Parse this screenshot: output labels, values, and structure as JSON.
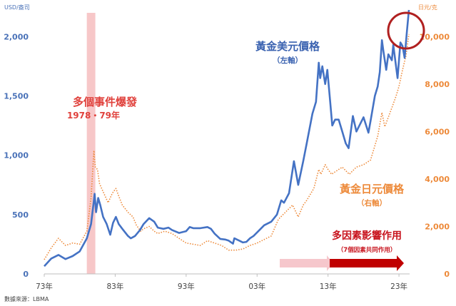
{
  "chart_data": {
    "type": "line",
    "left_axis_unit": "USD/盎司",
    "right_axis_unit": "日元/克",
    "source_note": "數據來源：LBMA",
    "x_ticks": [
      {
        "year": 1973,
        "label": "73年"
      },
      {
        "year": 1983,
        "label": "83年"
      },
      {
        "year": 1993,
        "label": "93年"
      },
      {
        "year": 2003,
        "label": "03年"
      },
      {
        "year": 2013,
        "label": "13年"
      },
      {
        "year": 2023,
        "label": "23年"
      }
    ],
    "xlim": [
      1973,
      2024.5
    ],
    "left_ylim": [
      0,
      2200
    ],
    "right_ylim": [
      0,
      11000
    ],
    "left_ticks": [
      {
        "v": 0,
        "label": "0"
      },
      {
        "v": 500,
        "label": "500"
      },
      {
        "v": 1000,
        "label": "1,000"
      },
      {
        "v": 1500,
        "label": "1,500"
      },
      {
        "v": 2000,
        "label": "2,000"
      }
    ],
    "right_ticks": [
      {
        "v": 0,
        "label": "0"
      },
      {
        "v": 2000,
        "label": "2,000"
      },
      {
        "v": 4000,
        "label": "4,000"
      },
      {
        "v": 6000,
        "label": "6,000"
      },
      {
        "v": 8000,
        "label": "8,000"
      },
      {
        "v": 10000,
        "label": "10,000"
      }
    ],
    "series": [
      {
        "name": "黃金美元價格",
        "sub": "（左軸）",
        "axis": "left",
        "color": "#4472c4",
        "style": "solid",
        "points": [
          [
            1973,
            65
          ],
          [
            1974,
            130
          ],
          [
            1975,
            160
          ],
          [
            1976,
            125
          ],
          [
            1977,
            150
          ],
          [
            1978,
            190
          ],
          [
            1979,
            300
          ],
          [
            1979.6,
            420
          ],
          [
            1980,
            620
          ],
          [
            1980.1,
            675
          ],
          [
            1980.3,
            520
          ],
          [
            1980.6,
            640
          ],
          [
            1980.9,
            580
          ],
          [
            1981.3,
            480
          ],
          [
            1981.8,
            420
          ],
          [
            1982.3,
            330
          ],
          [
            1982.7,
            430
          ],
          [
            1983.1,
            480
          ],
          [
            1983.5,
            420
          ],
          [
            1984,
            380
          ],
          [
            1984.8,
            320
          ],
          [
            1985.2,
            300
          ],
          [
            1985.8,
            320
          ],
          [
            1986.5,
            370
          ],
          [
            1987,
            420
          ],
          [
            1987.8,
            470
          ],
          [
            1988.5,
            440
          ],
          [
            1989,
            390
          ],
          [
            1989.8,
            380
          ],
          [
            1990.5,
            390
          ],
          [
            1991,
            370
          ],
          [
            1992,
            345
          ],
          [
            1993,
            360
          ],
          [
            1993.5,
            395
          ],
          [
            1994,
            385
          ],
          [
            1995,
            385
          ],
          [
            1996,
            395
          ],
          [
            1996.5,
            380
          ],
          [
            1997,
            340
          ],
          [
            1997.8,
            295
          ],
          [
            1998.5,
            290
          ],
          [
            1999,
            280
          ],
          [
            1999.6,
            255
          ],
          [
            1999.8,
            300
          ],
          [
            2000.5,
            280
          ],
          [
            2001,
            265
          ],
          [
            2001.5,
            270
          ],
          [
            2002,
            300
          ],
          [
            2002.5,
            320
          ],
          [
            2003,
            350
          ],
          [
            2004,
            410
          ],
          [
            2005,
            440
          ],
          [
            2005.8,
            500
          ],
          [
            2006.4,
            620
          ],
          [
            2006.8,
            600
          ],
          [
            2007.5,
            680
          ],
          [
            2008.2,
            950
          ],
          [
            2008.8,
            750
          ],
          [
            2009.5,
            950
          ],
          [
            2010,
            1100
          ],
          [
            2010.8,
            1350
          ],
          [
            2011.3,
            1450
          ],
          [
            2011.7,
            1780
          ],
          [
            2011.9,
            1650
          ],
          [
            2012.2,
            1750
          ],
          [
            2012.6,
            1600
          ],
          [
            2012.9,
            1720
          ],
          [
            2013.3,
            1450
          ],
          [
            2013.6,
            1250
          ],
          [
            2014,
            1300
          ],
          [
            2014.5,
            1300
          ],
          [
            2015,
            1200
          ],
          [
            2015.5,
            1100
          ],
          [
            2015.9,
            1060
          ],
          [
            2016.5,
            1330
          ],
          [
            2017,
            1200
          ],
          [
            2017.5,
            1260
          ],
          [
            2018,
            1320
          ],
          [
            2018.7,
            1190
          ],
          [
            2019,
            1290
          ],
          [
            2019.6,
            1500
          ],
          [
            2020,
            1580
          ],
          [
            2020.3,
            1700
          ],
          [
            2020.6,
            1970
          ],
          [
            2020.8,
            1880
          ],
          [
            2021.2,
            1720
          ],
          [
            2021.5,
            1850
          ],
          [
            2022,
            1800
          ],
          [
            2022.2,
            1930
          ],
          [
            2022.8,
            1650
          ],
          [
            2023.2,
            1950
          ],
          [
            2023.5,
            1920
          ],
          [
            2023.8,
            1820
          ],
          [
            2024.1,
            2030
          ],
          [
            2024.4,
            2340
          ]
        ]
      },
      {
        "name": "黃金日元價格",
        "sub": "（右軸）",
        "axis": "right",
        "color": "#ed8a3a",
        "style": "dotted",
        "points": [
          [
            1973,
            600
          ],
          [
            1974,
            1100
          ],
          [
            1975,
            1500
          ],
          [
            1976,
            1200
          ],
          [
            1977,
            1300
          ],
          [
            1978,
            1250
          ],
          [
            1979,
            1800
          ],
          [
            1979.6,
            3200
          ],
          [
            1980,
            5200
          ],
          [
            1980.2,
            4500
          ],
          [
            1980.5,
            4400
          ],
          [
            1980.8,
            3800
          ],
          [
            1981.4,
            3400
          ],
          [
            1982,
            3000
          ],
          [
            1982.6,
            3400
          ],
          [
            1983.1,
            3600
          ],
          [
            1983.6,
            3200
          ],
          [
            1984,
            2900
          ],
          [
            1984.8,
            2600
          ],
          [
            1985.5,
            2400
          ],
          [
            1986,
            2050
          ],
          [
            1986.6,
            1800
          ],
          [
            1987,
            1900
          ],
          [
            1987.8,
            2000
          ],
          [
            1988.5,
            1800
          ],
          [
            1989,
            1700
          ],
          [
            1990,
            1800
          ],
          [
            1991,
            1700
          ],
          [
            1992,
            1500
          ],
          [
            1993,
            1300
          ],
          [
            1994,
            1250
          ],
          [
            1995,
            1200
          ],
          [
            1996,
            1400
          ],
          [
            1997,
            1300
          ],
          [
            1998,
            1200
          ],
          [
            1999,
            1000
          ],
          [
            2000,
            1000
          ],
          [
            2001,
            1050
          ],
          [
            2002,
            1200
          ],
          [
            2003,
            1300
          ],
          [
            2004,
            1450
          ],
          [
            2005,
            1600
          ],
          [
            2006,
            2300
          ],
          [
            2007,
            2600
          ],
          [
            2008,
            2900
          ],
          [
            2008.8,
            2400
          ],
          [
            2009.5,
            2900
          ],
          [
            2010,
            3100
          ],
          [
            2011,
            3600
          ],
          [
            2011.7,
            4400
          ],
          [
            2012,
            4200
          ],
          [
            2012.6,
            4600
          ],
          [
            2013,
            4400
          ],
          [
            2013.5,
            4200
          ],
          [
            2014,
            4300
          ],
          [
            2015,
            4500
          ],
          [
            2016,
            4200
          ],
          [
            2017,
            4500
          ],
          [
            2018,
            4600
          ],
          [
            2019,
            4800
          ],
          [
            2020,
            5800
          ],
          [
            2020.6,
            6800
          ],
          [
            2021,
            6200
          ],
          [
            2022,
            7000
          ],
          [
            2022.6,
            7500
          ],
          [
            2023,
            7900
          ],
          [
            2023.5,
            8600
          ],
          [
            2024,
            9200
          ],
          [
            2024.4,
            10100
          ]
        ]
      }
    ],
    "shaded_period": {
      "from": 1979,
      "to": 1980.2,
      "color": "#f7c7c8"
    },
    "annotations": {
      "multi_event_title": "多個事件爆發",
      "multi_event_years": "1978・79年",
      "usd_label": "黃金美元價格",
      "usd_sub": "（左軸）",
      "jpy_label": "黃金日元價格",
      "jpy_sub": "（右軸）",
      "multi_factor_title": "多因素影響作用",
      "multi_factor_sub": "（7個因素共同作用）"
    },
    "grid": false,
    "legend": "inline labels"
  }
}
